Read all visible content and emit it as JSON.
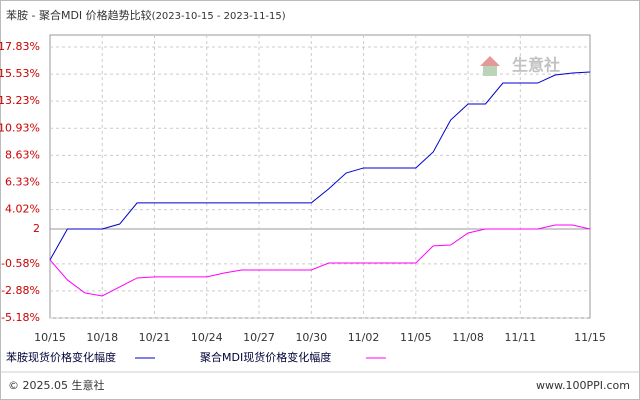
{
  "chart_data": {
    "type": "line",
    "title": "苯胺 - 聚合MDI 价格趋势比较",
    "subtitle": "(2023-10-15 - 2023-11-15)",
    "categories": [
      "10/15",
      null,
      null,
      "10/18",
      null,
      null,
      "10/21",
      null,
      null,
      "10/24",
      null,
      null,
      "10/27",
      null,
      null,
      "10/30",
      null,
      null,
      "11/02",
      null,
      null,
      "11/05",
      null,
      null,
      "11/08",
      null,
      null,
      "11/11",
      null,
      null,
      null,
      "11/15"
    ],
    "series": [
      {
        "name": "苯胺现货价格变化幅度",
        "color": "#0000cc",
        "values": [
          -0.25,
          2.38,
          2.38,
          2.38,
          2.8,
          4.59,
          4.59,
          4.59,
          4.59,
          4.59,
          4.59,
          4.59,
          4.59,
          4.59,
          4.59,
          4.59,
          5.78,
          7.13,
          7.56,
          7.56,
          7.56,
          7.56,
          8.92,
          11.63,
          12.99,
          12.99,
          14.77,
          14.77,
          14.77,
          15.45,
          15.62,
          15.71
        ]
      },
      {
        "name": "聚合MDI现货价格变化幅度",
        "color": "#ff00ff",
        "values": [
          -0.25,
          -1.95,
          -3.05,
          -3.31,
          -2.54,
          -1.78,
          -1.69,
          -1.69,
          -1.69,
          -1.69,
          -1.36,
          -1.1,
          -1.1,
          -1.1,
          -1.1,
          -1.1,
          -0.51,
          -0.51,
          -0.51,
          -0.51,
          -0.51,
          -0.51,
          0.94,
          1.02,
          2.04,
          2.38,
          2.38,
          2.38,
          2.38,
          2.72,
          2.72,
          2.38
        ]
      }
    ],
    "ylim": [
      -5.18,
      17.83
    ],
    "yticks": [
      {
        "value": 17.83,
        "label": "17.83%"
      },
      {
        "value": 15.53,
        "label": "15.53%"
      },
      {
        "value": 13.23,
        "label": "13.23%"
      },
      {
        "value": 10.93,
        "label": "10.93%"
      },
      {
        "value": 8.63,
        "label": "8.63%"
      },
      {
        "value": 6.33,
        "label": "6.33%"
      },
      {
        "value": 4.02,
        "label": "4.02%"
      },
      {
        "value": 2.38,
        "label": "2"
      },
      {
        "value": -0.58,
        "label": "-0.58%"
      },
      {
        "value": -2.88,
        "label": "-2.88%"
      },
      {
        "value": -5.18,
        "label": "-5.18%"
      }
    ],
    "grid": true,
    "watermark": "生意社",
    "footer_left": "© 2025.05 生意社",
    "footer_right": "www.100PPI.com"
  }
}
